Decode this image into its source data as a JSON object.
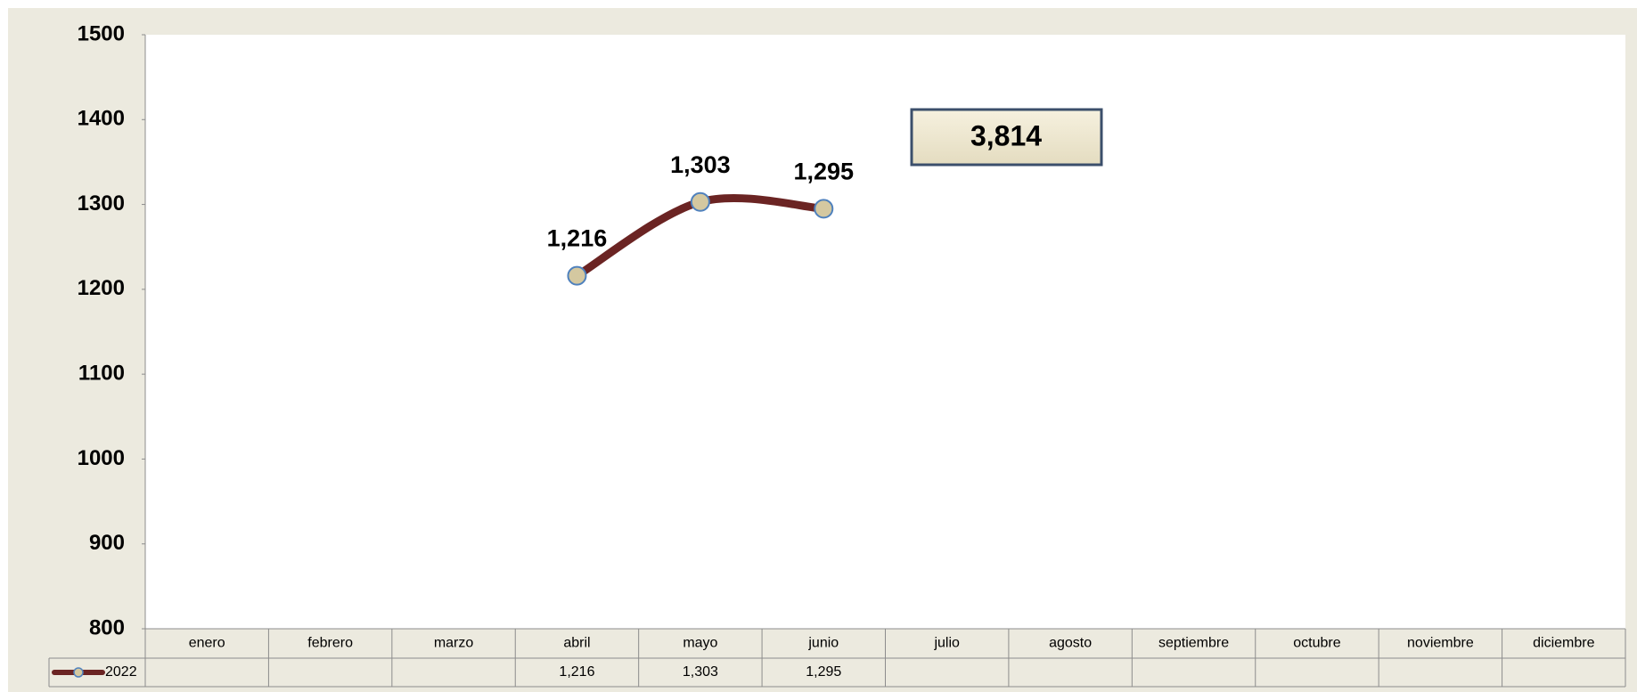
{
  "chart_data": {
    "type": "line",
    "categories": [
      "enero",
      "febrero",
      "marzo",
      "abril",
      "mayo",
      "junio",
      "julio",
      "agosto",
      "septiembre",
      "octubre",
      "noviembre",
      "diciembre"
    ],
    "series": [
      {
        "name": "2022",
        "color": "#6b2423",
        "values": [
          null,
          null,
          null,
          1216,
          1303,
          1295,
          null,
          null,
          null,
          null,
          null,
          null
        ],
        "value_labels": [
          null,
          null,
          null,
          "1,216",
          "1,303",
          "1,295",
          null,
          null,
          null,
          null,
          null,
          null
        ]
      }
    ],
    "ylim": [
      800,
      1500
    ],
    "yticks": [
      800,
      900,
      1000,
      1100,
      1200,
      1300,
      1400,
      1500
    ],
    "annotation": "3,814",
    "marker_color": "#d4c8a0",
    "marker_edge": "#4f81bd",
    "data_table": true
  }
}
